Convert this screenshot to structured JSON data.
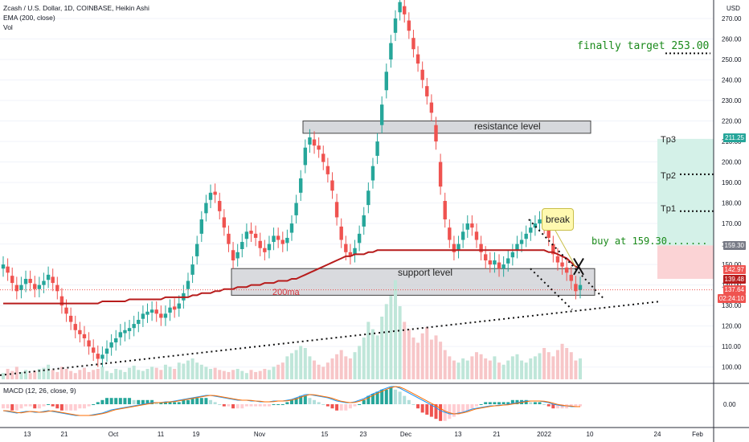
{
  "header": {
    "title": "Zcash / U.S. Dollar, 1D, COINBASE, Heikin Ashi",
    "ema": "EMA (200, close)",
    "vol": "Vol",
    "macd": "MACD (12, 26, close, 9)",
    "currency": "USD"
  },
  "annotations": {
    "finally_target": "finally target 253.00",
    "resistance": "resistance level",
    "support": "support level",
    "ma200": "200ma",
    "break": "break",
    "buy": "buy at 159.30.......",
    "tp1": "Tp1",
    "tp2": "Tp2",
    "tp3": "Tp3"
  },
  "price_tags": {
    "tp3": "211.25",
    "buy": "159.30",
    "p1": "142.97",
    "p2": "139.48",
    "p3": "137.64",
    "p4": "02:24:10"
  },
  "colors": {
    "up": "#26a69a",
    "down": "#ef5350",
    "ema": "#b71c1c",
    "macd_line": "#2196f3",
    "signal_line": "#ff6d00",
    "green_zone": "#d4f1e8",
    "red_zone": "#fbd3d5",
    "annotation_green": "#1b8a1b"
  },
  "chart_data": {
    "type": "candlestick",
    "symbol": "Zcash / U.S. Dollar",
    "timeframe": "1D",
    "exchange": "COINBASE",
    "y_axis": {
      "ticks": [
        100,
        110,
        120,
        130,
        140,
        150,
        160,
        170,
        180,
        190,
        200,
        210,
        220,
        230,
        240,
        250,
        260,
        270
      ],
      "labels": [
        "100.00",
        "110.00",
        "120.00",
        "130.00",
        "140.00",
        "150.00",
        "160.00",
        "170.00",
        "180.00",
        "190.00",
        "200.00",
        "210.00",
        "220.00",
        "230.00",
        "240.00",
        "250.00",
        "260.00",
        "270.00"
      ],
      "range": [
        94,
        279
      ]
    },
    "x_axis": {
      "labels": [
        "13",
        "21",
        "Oct",
        "11",
        "19",
        "Nov",
        "15",
        "23",
        "Dec",
        "13",
        "21",
        "2022",
        "10",
        "24",
        "Feb"
      ]
    },
    "series": [
      {
        "type": "ohlc",
        "close": [
          150,
          146,
          141,
          137,
          140,
          143,
          141,
          138,
          140,
          142,
          145,
          141,
          137,
          130,
          126,
          122,
          118,
          116,
          114,
          110,
          107,
          104,
          106,
          109,
          112,
          114,
          117,
          118,
          119,
          121,
          123,
          126,
          127,
          128,
          126,
          124,
          126,
          129,
          128,
          131,
          136,
          142,
          150,
          160,
          172,
          180,
          185,
          184,
          176,
          168,
          160,
          152,
          156,
          161,
          166,
          165,
          163,
          158,
          156,
          160,
          164,
          162,
          160,
          163,
          170,
          180,
          192,
          207,
          212,
          208,
          206,
          200,
          194,
          186,
          173,
          162,
          156,
          154,
          158,
          165,
          174,
          186,
          198,
          210,
          228,
          244,
          258,
          270,
          278,
          272,
          264,
          255,
          248,
          240,
          232,
          224,
          210,
          188,
          172,
          162,
          156,
          160,
          166,
          170,
          168,
          162,
          156,
          152,
          150,
          152,
          148,
          150,
          153,
          156,
          160,
          162,
          165,
          168,
          170,
          172,
          169,
          163,
          155,
          151,
          149,
          146,
          142,
          137,
          140
        ]
      }
    ],
    "ema200": {
      "name": "200ma",
      "values": [
        131,
        131,
        131,
        131,
        131,
        131,
        131,
        131,
        131,
        131,
        131,
        131,
        131,
        131,
        131,
        131,
        131,
        131,
        131,
        131,
        131,
        131,
        132,
        132,
        132,
        132,
        132,
        132,
        133,
        133,
        133,
        133,
        133,
        133,
        133,
        133,
        134,
        134,
        134,
        134,
        134,
        134,
        135,
        135,
        136,
        136,
        136,
        137,
        137,
        138,
        138,
        138,
        139,
        139,
        139,
        140,
        140,
        140,
        141,
        141,
        141,
        142,
        142,
        142,
        143,
        143,
        144,
        145,
        146,
        147,
        148,
        149,
        150,
        151,
        152,
        153,
        154,
        154,
        155,
        155,
        155,
        156,
        156,
        157,
        157,
        157,
        157,
        157,
        157,
        157,
        157,
        157,
        157,
        157,
        157,
        157,
        157,
        157,
        157,
        157,
        157,
        157,
        157,
        157,
        157,
        157,
        157,
        157,
        157,
        157,
        157,
        157,
        157,
        157,
        157,
        157,
        157,
        157,
        157,
        157,
        157,
        156,
        156,
        155,
        154,
        153,
        151,
        149,
        148
      ]
    },
    "zones": {
      "resistance": [
        214,
        220
      ],
      "support": [
        135,
        148
      ],
      "buy": 159.3,
      "tp1": 176,
      "tp2": 194,
      "tp3": 211.25,
      "final_target": 253.0
    },
    "volume": [
      6,
      10,
      8,
      12,
      7,
      9,
      6,
      8,
      10,
      11,
      14,
      9,
      7,
      12,
      10,
      8,
      6,
      9,
      11,
      7,
      9,
      10,
      12,
      8,
      6,
      10,
      9,
      7,
      11,
      13,
      9,
      8,
      10,
      12,
      11,
      9,
      14,
      12,
      10,
      16,
      15,
      18,
      20,
      16,
      14,
      12,
      10,
      11,
      9,
      8,
      7,
      9,
      10,
      8,
      6,
      9,
      7,
      8,
      10,
      9,
      12,
      14,
      16,
      22,
      25,
      28,
      32,
      30,
      22,
      18,
      14,
      12,
      16,
      20,
      24,
      28,
      22,
      20,
      26,
      32,
      40,
      55,
      48,
      42,
      60,
      72,
      80,
      95,
      70,
      55,
      48,
      40,
      35,
      44,
      50,
      38,
      42,
      36,
      28,
      22,
      18,
      16,
      20,
      18,
      22,
      26,
      24,
      20,
      18,
      22,
      16,
      14,
      18,
      22,
      24,
      18,
      16,
      20,
      22,
      25,
      30,
      26,
      22,
      28,
      34,
      30,
      26,
      18,
      20
    ],
    "macd": [
      -8,
      -9,
      -10,
      -11,
      -10,
      -9,
      -9,
      -10,
      -10,
      -9,
      -8,
      -9,
      -10,
      -11,
      -12,
      -13,
      -14,
      -14,
      -14,
      -14,
      -13,
      -12,
      -11,
      -9,
      -7,
      -6,
      -5,
      -4,
      -3,
      -2,
      -1,
      0,
      1,
      2,
      2,
      2,
      3,
      3,
      4,
      5,
      6,
      7,
      8,
      9,
      10,
      11,
      11,
      10,
      9,
      8,
      7,
      6,
      5,
      5,
      5,
      4,
      4,
      3,
      3,
      3,
      4,
      4,
      4,
      5,
      6,
      8,
      10,
      12,
      12,
      11,
      10,
      9,
      8,
      6,
      4,
      3,
      2,
      2,
      3,
      5,
      7,
      10,
      13,
      15,
      18,
      20,
      22,
      22,
      20,
      17,
      14,
      11,
      8,
      5,
      2,
      -1,
      -4,
      -8,
      -10,
      -12,
      -12,
      -11,
      -10,
      -8,
      -6,
      -5,
      -4,
      -3,
      -2,
      -2,
      -1,
      -1,
      0,
      1,
      2,
      3,
      4,
      4,
      4,
      4,
      3,
      2,
      0,
      -1,
      -2,
      -2,
      -3,
      -3,
      -3
    ],
    "macd_hist": [
      -2,
      -2,
      -3,
      -3,
      -2,
      -1,
      -1,
      -2,
      -2,
      -1,
      0,
      -1,
      -2,
      -3,
      -3,
      -3,
      -3,
      -2,
      -2,
      -1,
      0,
      1,
      2,
      3,
      3,
      3,
      3,
      3,
      3,
      2,
      2,
      2,
      2,
      2,
      1,
      1,
      1,
      1,
      1,
      1,
      2,
      2,
      3,
      3,
      3,
      3,
      2,
      1,
      0,
      -1,
      -1,
      -2,
      -2,
      -2,
      -1,
      -1,
      -1,
      -1,
      -1,
      -1,
      0,
      0,
      0,
      1,
      2,
      3,
      4,
      4,
      3,
      2,
      1,
      0,
      -1,
      -2,
      -3,
      -3,
      -3,
      -2,
      -1,
      0,
      2,
      4,
      5,
      6,
      7,
      7,
      8,
      7,
      6,
      4,
      2,
      0,
      -2,
      -4,
      -5,
      -6,
      -7,
      -8,
      -8,
      -7,
      -6,
      -5,
      -4,
      -3,
      -2,
      -1,
      0,
      1,
      1,
      1,
      1,
      1,
      1,
      2,
      2,
      2,
      2,
      1,
      1,
      1,
      0,
      -1,
      -2,
      -2,
      -2,
      -2,
      -1,
      -1,
      -1
    ]
  }
}
